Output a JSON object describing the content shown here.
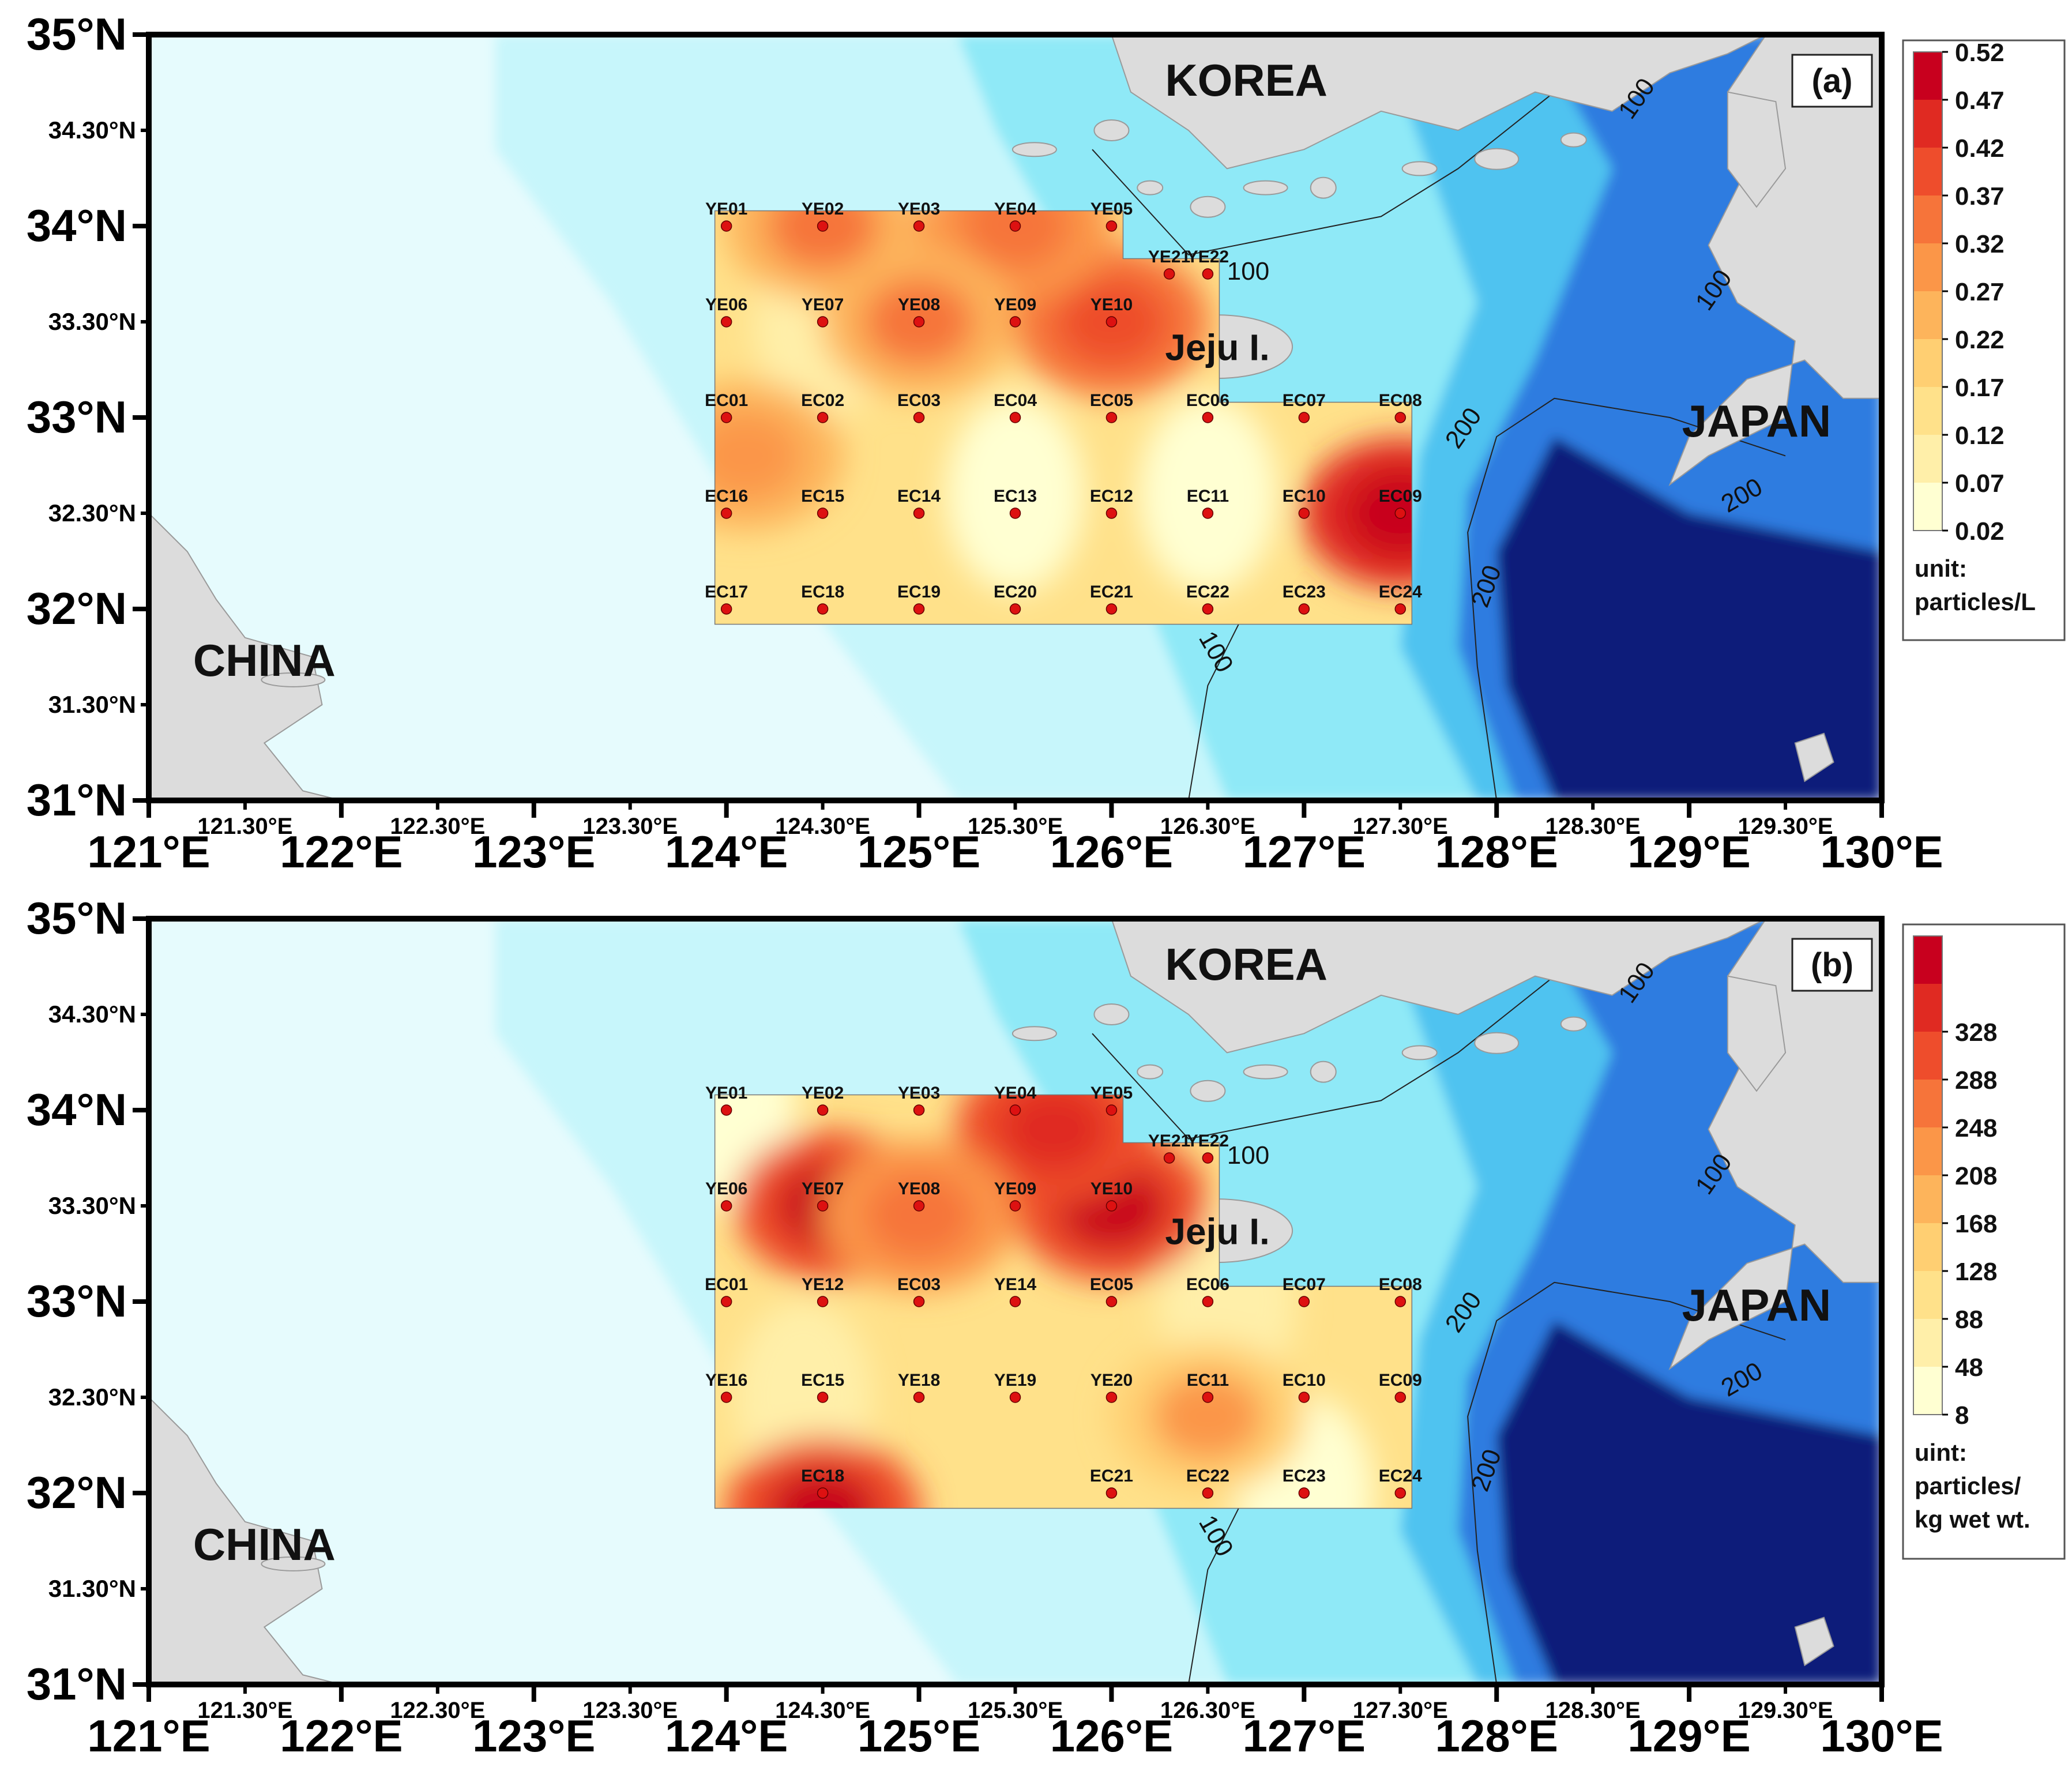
{
  "panels": [
    {
      "id": "a",
      "label": "(a)",
      "countries": {
        "korea": "KOREA",
        "japan": "JAPAN",
        "china": "CHINA",
        "island": "Jeju I."
      },
      "legend": {
        "ticks": [
          "0.52",
          "0.47",
          "0.42",
          "0.37",
          "0.32",
          "0.27",
          "0.22",
          "0.17",
          "0.12",
          "0.07",
          "0.02"
        ],
        "unit_lines": [
          "unit:",
          "particles/L"
        ]
      },
      "stations": [
        {
          "name": "YE01",
          "lon": 124.0,
          "lat": 34.0
        },
        {
          "name": "YE02",
          "lon": 124.5,
          "lat": 34.0
        },
        {
          "name": "YE03",
          "lon": 125.0,
          "lat": 34.0
        },
        {
          "name": "YE04",
          "lon": 125.5,
          "lat": 34.0
        },
        {
          "name": "YE05",
          "lon": 126.0,
          "lat": 34.0
        },
        {
          "name": "YE21",
          "lon": 126.3,
          "lat": 33.75
        },
        {
          "name": "YE22",
          "lon": 126.5,
          "lat": 33.75
        },
        {
          "name": "YE06",
          "lon": 124.0,
          "lat": 33.5
        },
        {
          "name": "YE07",
          "lon": 124.5,
          "lat": 33.5
        },
        {
          "name": "YE08",
          "lon": 125.0,
          "lat": 33.5
        },
        {
          "name": "YE09",
          "lon": 125.5,
          "lat": 33.5
        },
        {
          "name": "YE10",
          "lon": 126.0,
          "lat": 33.5
        },
        {
          "name": "EC01",
          "lon": 124.0,
          "lat": 33.0
        },
        {
          "name": "EC02",
          "lon": 124.5,
          "lat": 33.0
        },
        {
          "name": "EC03",
          "lon": 125.0,
          "lat": 33.0
        },
        {
          "name": "EC04",
          "lon": 125.5,
          "lat": 33.0
        },
        {
          "name": "EC05",
          "lon": 126.0,
          "lat": 33.0
        },
        {
          "name": "EC06",
          "lon": 126.5,
          "lat": 33.0
        },
        {
          "name": "EC07",
          "lon": 127.0,
          "lat": 33.0
        },
        {
          "name": "EC08",
          "lon": 127.5,
          "lat": 33.0
        },
        {
          "name": "EC16",
          "lon": 124.0,
          "lat": 32.5
        },
        {
          "name": "EC15",
          "lon": 124.5,
          "lat": 32.5
        },
        {
          "name": "EC14",
          "lon": 125.0,
          "lat": 32.5
        },
        {
          "name": "EC13",
          "lon": 125.5,
          "lat": 32.5
        },
        {
          "name": "EC12",
          "lon": 126.0,
          "lat": 32.5
        },
        {
          "name": "EC11",
          "lon": 126.5,
          "lat": 32.5
        },
        {
          "name": "EC10",
          "lon": 127.0,
          "lat": 32.5
        },
        {
          "name": "EC09",
          "lon": 127.5,
          "lat": 32.5
        },
        {
          "name": "EC17",
          "lon": 124.0,
          "lat": 32.0
        },
        {
          "name": "EC18",
          "lon": 124.5,
          "lat": 32.0
        },
        {
          "name": "EC19",
          "lon": 125.0,
          "lat": 32.0
        },
        {
          "name": "EC20",
          "lon": 125.5,
          "lat": 32.0
        },
        {
          "name": "EC21",
          "lon": 126.0,
          "lat": 32.0
        },
        {
          "name": "EC22",
          "lon": 126.5,
          "lat": 32.0
        },
        {
          "name": "EC23",
          "lon": 127.0,
          "lat": 32.0
        },
        {
          "name": "EC24",
          "lon": 127.5,
          "lat": 32.0
        }
      ],
      "hotspots": [
        {
          "lon": 127.5,
          "lat": 32.5,
          "level": 0.5
        },
        {
          "lon": 126.0,
          "lat": 33.5,
          "level": 0.4
        },
        {
          "lon": 125.5,
          "lat": 34.0,
          "level": 0.36
        },
        {
          "lon": 125.0,
          "lat": 33.5,
          "level": 0.34
        },
        {
          "lon": 124.5,
          "lat": 34.0,
          "level": 0.32
        },
        {
          "lon": 124.1,
          "lat": 32.8,
          "level": 0.3
        }
      ],
      "coldspots": [
        {
          "lon": 125.5,
          "lat": 32.6,
          "level": 0.05
        },
        {
          "lon": 126.5,
          "lat": 32.6,
          "level": 0.06
        },
        {
          "lon": 124.5,
          "lat": 33.5,
          "level": 0.1
        },
        {
          "lon": 125.0,
          "lat": 34.0,
          "level": 0.12
        }
      ]
    },
    {
      "id": "b",
      "label": "(b)",
      "countries": {
        "korea": "KOREA",
        "japan": "JAPAN",
        "china": "CHINA",
        "island": "Jeju I."
      },
      "legend": {
        "ticks": [
          "328",
          "288",
          "248",
          "208",
          "168",
          "128",
          "88",
          "48",
          "8"
        ],
        "unit_lines": [
          "uint:",
          "particles/",
          "kg wet wt."
        ]
      },
      "stations": [
        {
          "name": "YE01",
          "lon": 124.0,
          "lat": 34.0
        },
        {
          "name": "YE02",
          "lon": 124.5,
          "lat": 34.0
        },
        {
          "name": "YE03",
          "lon": 125.0,
          "lat": 34.0
        },
        {
          "name": "YE04",
          "lon": 125.5,
          "lat": 34.0
        },
        {
          "name": "YE05",
          "lon": 126.0,
          "lat": 34.0
        },
        {
          "name": "YE21",
          "lon": 126.3,
          "lat": 33.75
        },
        {
          "name": "YE22",
          "lon": 126.5,
          "lat": 33.75
        },
        {
          "name": "YE06",
          "lon": 124.0,
          "lat": 33.5
        },
        {
          "name": "YE07",
          "lon": 124.5,
          "lat": 33.5
        },
        {
          "name": "YE08",
          "lon": 125.0,
          "lat": 33.5
        },
        {
          "name": "YE09",
          "lon": 125.5,
          "lat": 33.5
        },
        {
          "name": "YE10",
          "lon": 126.0,
          "lat": 33.5
        },
        {
          "name": "EC01",
          "lon": 124.0,
          "lat": 33.0
        },
        {
          "name": "YE12",
          "lon": 124.5,
          "lat": 33.0
        },
        {
          "name": "EC03",
          "lon": 125.0,
          "lat": 33.0
        },
        {
          "name": "YE14",
          "lon": 125.5,
          "lat": 33.0
        },
        {
          "name": "EC05",
          "lon": 126.0,
          "lat": 33.0
        },
        {
          "name": "EC06",
          "lon": 126.5,
          "lat": 33.0
        },
        {
          "name": "EC07",
          "lon": 127.0,
          "lat": 33.0
        },
        {
          "name": "EC08",
          "lon": 127.5,
          "lat": 33.0
        },
        {
          "name": "YE16",
          "lon": 124.0,
          "lat": 32.5
        },
        {
          "name": "EC15",
          "lon": 124.5,
          "lat": 32.5
        },
        {
          "name": "YE18",
          "lon": 125.0,
          "lat": 32.5
        },
        {
          "name": "YE19",
          "lon": 125.5,
          "lat": 32.5
        },
        {
          "name": "YE20",
          "lon": 126.0,
          "lat": 32.5
        },
        {
          "name": "EC11",
          "lon": 126.5,
          "lat": 32.5
        },
        {
          "name": "EC10",
          "lon": 127.0,
          "lat": 32.5
        },
        {
          "name": "EC09",
          "lon": 127.5,
          "lat": 32.5
        },
        {
          "name": "EC18",
          "lon": 124.5,
          "lat": 32.0
        },
        {
          "name": "EC21",
          "lon": 126.0,
          "lat": 32.0
        },
        {
          "name": "EC22",
          "lon": 126.5,
          "lat": 32.0
        },
        {
          "name": "EC23",
          "lon": 127.0,
          "lat": 32.0
        },
        {
          "name": "EC24",
          "lon": 127.5,
          "lat": 32.0
        }
      ],
      "hotspots": [
        {
          "lon": 126.0,
          "lat": 33.5,
          "level": 310
        },
        {
          "lon": 125.7,
          "lat": 33.9,
          "level": 280
        },
        {
          "lon": 124.55,
          "lat": 33.5,
          "level": 300
        },
        {
          "lon": 124.5,
          "lat": 31.9,
          "level": 300
        },
        {
          "lon": 125.0,
          "lat": 33.45,
          "level": 230
        },
        {
          "lon": 126.5,
          "lat": 32.4,
          "level": 180
        }
      ],
      "coldspots": [
        {
          "lon": 124.0,
          "lat": 34.0,
          "level": 20
        },
        {
          "lon": 127.0,
          "lat": 32.0,
          "level": 30
        },
        {
          "lon": 126.6,
          "lat": 33.0,
          "level": 40
        },
        {
          "lon": 124.4,
          "lat": 32.5,
          "level": 40
        }
      ]
    }
  ],
  "axes": {
    "lat_major": [
      "35°N",
      "34°N",
      "33°N",
      "32°N",
      "31°N"
    ],
    "lat_minor": [
      "34.30°N",
      "33.30°N",
      "32.30°N",
      "31.30°N"
    ],
    "lon_major": [
      "121°E",
      "122°E",
      "123°E",
      "124°E",
      "125°E",
      "126°E",
      "127°E",
      "128°E",
      "129°E",
      "130°E"
    ],
    "lon_minor": [
      "121.30°E",
      "122.30°E",
      "123.30°E",
      "124.30°E",
      "125.30°E",
      "126.30°E",
      "127.30°E",
      "128.30°E",
      "129.30°E"
    ]
  },
  "depth_contours": [
    "100",
    "100",
    "100",
    "100",
    "200",
    "200",
    "200",
    "200"
  ],
  "colors": {
    "ocean_shallow": "#e6fbfd",
    "ocean_mid": "#8fe9f7",
    "ocean_deep": "#2f7be0",
    "ocean_abyss": "#0a1f7a",
    "land": "#dcdcdc",
    "station": "#dd1111",
    "scale": [
      "#ffffd2",
      "#ffefa9",
      "#ffe18a",
      "#ffcf72",
      "#fdb45b",
      "#fb9648",
      "#f6743a",
      "#ee4d2c",
      "#e02a22",
      "#c8001e"
    ]
  }
}
